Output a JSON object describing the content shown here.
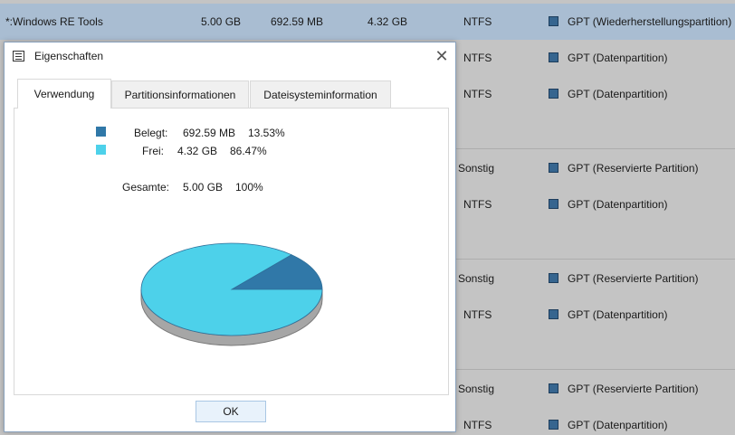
{
  "background_table": {
    "rows": [
      {
        "name": "*:Windows RE Tools",
        "capacity": "5.00 GB",
        "used": "692.59 MB",
        "free": "4.32 GB",
        "fs": "NTFS",
        "type": "GPT (Wiederherstellungspartition)",
        "selected": true
      },
      {
        "fs": "NTFS",
        "type": "GPT (Datenpartition)"
      },
      {
        "fs": "NTFS",
        "type": "GPT (Datenpartition)"
      },
      {
        "fs": "Sonstig",
        "type": "GPT (Reservierte Partition)"
      },
      {
        "fs": "NTFS",
        "type": "GPT (Datenpartition)"
      },
      {
        "fs": "Sonstig",
        "type": "GPT (Reservierte Partition)"
      },
      {
        "fs": "NTFS",
        "type": "GPT (Datenpartition)"
      },
      {
        "fs": "Sonstig",
        "type": "GPT (Reservierte Partition)"
      },
      {
        "fs": "NTFS",
        "type": "GPT (Datenpartition)"
      }
    ],
    "type_icon_color": "#36658f"
  },
  "dialog": {
    "title": "Eigenschaften",
    "close_glyph": "✕",
    "tabs": [
      {
        "label": "Verwendung",
        "active": true
      },
      {
        "label": "Partitionsinformationen",
        "active": false
      },
      {
        "label": "Dateisysteminformation",
        "active": false
      }
    ],
    "usage": {
      "used": {
        "label": "Belegt:",
        "value": "692.59 MB",
        "percent": "13.53%",
        "color": "#3078a8"
      },
      "free": {
        "label": "Frei:",
        "value": "4.32 GB",
        "percent": "86.47%",
        "color": "#4dd1ea"
      },
      "total": {
        "label": "Gesamte:",
        "value": "5.00 GB",
        "percent": "100%"
      }
    },
    "ok_label": "OK"
  },
  "chart_data": {
    "type": "pie",
    "categories": [
      "Belegt",
      "Frei"
    ],
    "values": [
      13.53,
      86.47
    ],
    "colors": [
      "#3078a8",
      "#4dd1ea"
    ],
    "style": "3d"
  }
}
